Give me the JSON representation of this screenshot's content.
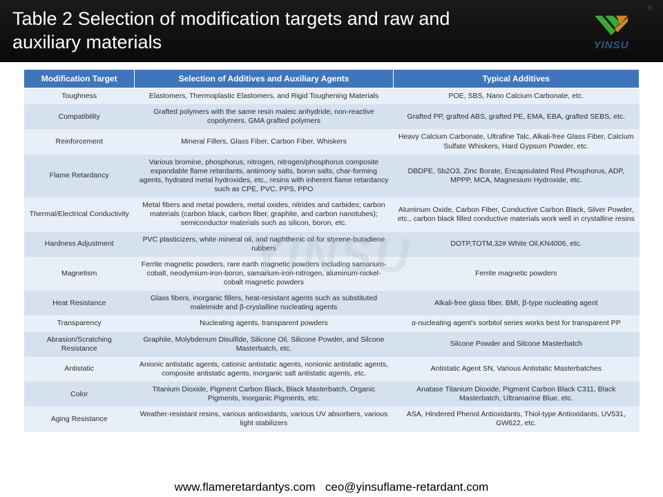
{
  "title": "Table 2 Selection of modification targets and raw and auxiliary materials",
  "logo": {
    "name": "YINSU",
    "r": "®"
  },
  "watermark": "YINSU",
  "columns": [
    "Modification Target",
    "Selection of Additives and Auxiliary Agents",
    "Typical Additives"
  ],
  "rows": [
    {
      "target": "Toughness",
      "selection": "Elastomers, Thermoplastic Elastomers, and Rigid Toughening Materials",
      "typical": "POE, SBS, Nano Calcium Carbonate, etc."
    },
    {
      "target": "Compatibility",
      "selection": "Grafted polymers with the same resin maleic anhydride, non-reactive copolymers, GMA grafted polymers",
      "typical": "Grafted PP, grafted ABS, grafted PE, EMA, EBA, grafted SEBS, etc."
    },
    {
      "target": "Reinforcement",
      "selection": "Mineral Fillers, Glass Fiber, Carbon Fiber, Whiskers",
      "typical": "Heavy Calcium Carbonate, Ultrafine Talc, Alkali-free Glass Fiber, Calcium Sulfate Whiskers, Hard Gypsum Powder, etc."
    },
    {
      "target": "Flame Retardancy",
      "selection": "Various bromine, phosphorus, nitrogen, nitrogen/phosphorus composite expandable flame retardants, antimony salts, boron salts, char-forming agents, hydrated metal hydroxides, etc., resins with inherent flame retardancy such as CPE, PVC, PPS, PPO",
      "typical": "DBDPE, Sb2O3, Zinc Borate, Encapsulated Red Phosphorus, ADP, MPPP, MCA, Magnesium Hydroxide, etc."
    },
    {
      "target": "Thermal/Electrical Conductivity",
      "selection": "Metal fibers and metal powders, metal oxides, nitrides and carbides; carbon materials (carbon black, carbon fiber, graphite, and carbon nanotubes); semiconductor materials such as silicon, boron, etc.",
      "typical": "Aluminum Oxide, Carbon Fiber, Conductive Carbon Black, Silver Powder, etc., carbon black filled conductive materials work well in crystalline resins"
    },
    {
      "target": "Hardness Adjustment",
      "selection": "PVC plasticizers, white mineral oil, and naphthenic oil for styrene-butadiene rubbers",
      "typical": "DOTP,TOTM,32# White Oil,KN4006, etc."
    },
    {
      "target": "Magnetism",
      "selection": "Ferrite magnetic powders, rare earth magnetic powders including samarium-cobalt, neodymium-iron-boron, samarium-iron-nitrogen, aluminum-nickel-cobalt magnetic powders",
      "typical": "Ferrite magnetic powders"
    },
    {
      "target": "Heat Resistance",
      "selection": "Glass fibers, inorganic fillers, heat-resistant agents such as substituted maleimide and β-crystalline nucleating agents",
      "typical": "Alkali-free glass fiber, BMI, β-type nucleating agent"
    },
    {
      "target": "Transparency",
      "selection": "Nucleating agents, transparent powders",
      "typical": "α-nucleating agent's sorbitol series works best for transparent PP"
    },
    {
      "target": "Abrasion/Scratching Resistance",
      "selection": "Graphite, Molybdenum Disulfide, Silicone Oil, Silicone Powder, and Silcone Masterbatch, etc.",
      "typical": "Silcone Powder and Silcone Masterbatch"
    },
    {
      "target": "Antistatic",
      "selection": "Anionic antistatic agents, cationic antistatic agents, nonionic antistatic agents, composite antistatic agents, inorganic salt antistatic agents, etc.",
      "typical": "Antistatic Agent SN, Various Antistatic Masterbatches"
    },
    {
      "target": "Color",
      "selection": "Titanium Dioxide, Pigment Carbon Black, Black Masterbatch, Organic Pigments, Inorganic Pigments, etc.",
      "typical": "Anatase Titanium Dioxide, Pigment Carbon Black C311, Black Masterbatch, Ultramarine Blue, etc."
    },
    {
      "target": "Aging Resistance",
      "selection": "Weather-resistant resins, various antioxidants, various UV absorbers, various light stabilizers",
      "typical": "ASA, Hindered Phenol Antioxidants, Thiol-type Antioxidants, UV531, GW622, etc."
    }
  ],
  "footer": "www.flameretardantys.com   ceo@yinsuflame-retardant.com"
}
